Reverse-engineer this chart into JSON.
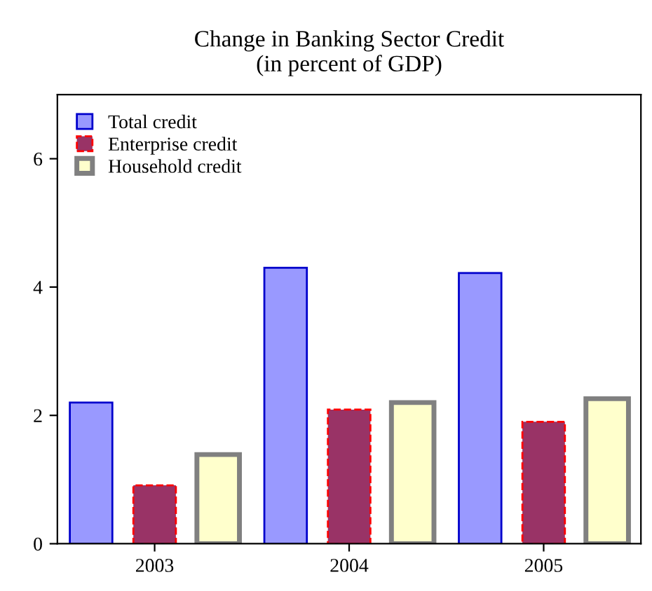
{
  "chart_data": {
    "type": "bar",
    "title": "Change in Banking Sector Credit\n(in percent of GDP)",
    "categories": [
      "2003",
      "2004",
      "2005"
    ],
    "series": [
      {
        "name": "Total credit",
        "color": "#9999ff",
        "values": [
          2.2,
          4.3,
          4.22
        ]
      },
      {
        "name": "Enterprise credit",
        "color": "#993366",
        "values": [
          0.91,
          2.09,
          1.9
        ]
      },
      {
        "name": "Household credit",
        "color": "#ffffcc",
        "values": [
          1.39,
          2.2,
          2.26
        ]
      }
    ],
    "ylim": [
      0,
      7
    ],
    "yticks": [
      0,
      2,
      4,
      6
    ],
    "grid": false,
    "legend": "top left"
  }
}
